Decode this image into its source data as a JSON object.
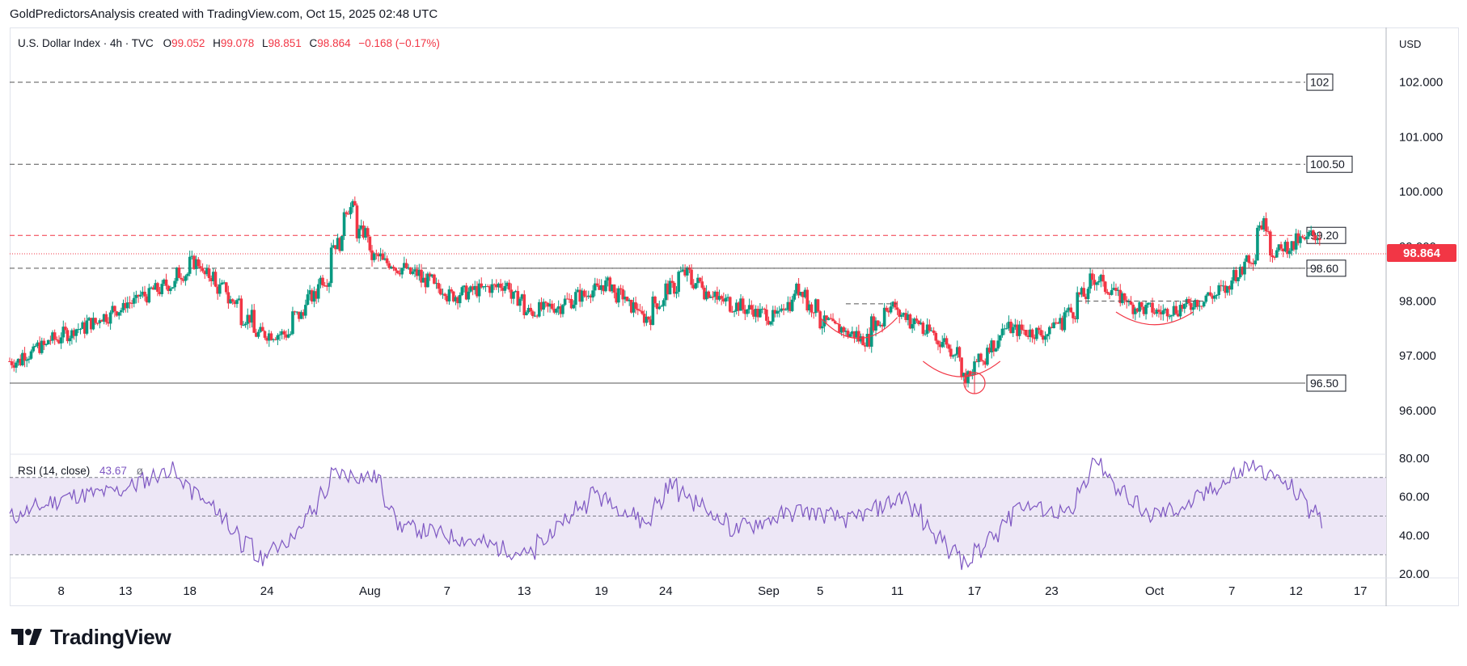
{
  "header": {
    "text": "GoldPredictorsAnalysis created with TradingView.com, Oct 15, 2025 02:48 UTC"
  },
  "legend": {
    "symbol": "U.S. Dollar Index · 4h · TVC",
    "open_label": "O",
    "open": "99.052",
    "high_label": "H",
    "high": "99.078",
    "low_label": "L",
    "low": "98.851",
    "close_label": "C",
    "close": "98.864",
    "change": "−0.168 (−0.17%)"
  },
  "currency": "USD",
  "last_price": "98.864",
  "rsi_legend": {
    "name": "RSI (14, close)",
    "value": "43.67",
    "extra": "ø"
  },
  "brand": {
    "name": "TradingView"
  },
  "colors": {
    "up": "#089981",
    "down": "#f23645",
    "rsi_line": "#7e57c2",
    "rsi_band": "#ede7f6",
    "level_line": "#555555",
    "red_level": "#f23645",
    "last_price_bg": "#f23645",
    "pattern": "#f23645"
  },
  "chart_data": [
    {
      "type": "candlestick",
      "title": "U.S. Dollar Index · 4h · TVC",
      "ylim": [
        95.2,
        103.0
      ],
      "y_ticks": [
        "102.000",
        "101.000",
        "100.000",
        "99.000",
        "98.000",
        "97.000",
        "96.000"
      ],
      "x_ticks": [
        "8",
        "13",
        "18",
        "24",
        "Aug",
        "7",
        "13",
        "19",
        "24",
        "Sep",
        "5",
        "11",
        "17",
        "23",
        "Oct",
        "7",
        "12",
        "17"
      ],
      "x_start": "2025-07-04",
      "x_end": "2025-10-19",
      "levels": [
        {
          "label": "102",
          "value": 102.0,
          "style": "dashed"
        },
        {
          "label": "100.50",
          "value": 100.5,
          "style": "dashed"
        },
        {
          "label": "99.20",
          "value": 99.2,
          "style": "dashed-red"
        },
        {
          "label": "98.60",
          "value": 98.6,
          "style": "dashed"
        },
        {
          "label": "96.50",
          "value": 96.5,
          "style": "solid"
        }
      ],
      "last_price": 98.864,
      "close_series": {
        "dates": [
          "2025-07-04",
          "2025-07-07",
          "2025-07-10",
          "2025-07-14",
          "2025-07-16",
          "2025-07-18",
          "2025-07-21",
          "2025-07-23",
          "2025-07-25",
          "2025-07-28",
          "2025-07-30",
          "2025-08-01",
          "2025-08-04",
          "2025-08-07",
          "2025-08-11",
          "2025-08-13",
          "2025-08-15",
          "2025-08-19",
          "2025-08-22",
          "2025-08-25",
          "2025-08-28",
          "2025-09-01",
          "2025-09-03",
          "2025-09-05",
          "2025-09-08",
          "2025-09-10",
          "2025-09-12",
          "2025-09-15",
          "2025-09-16",
          "2025-09-17",
          "2025-09-19",
          "2025-09-22",
          "2025-09-24",
          "2025-09-26",
          "2025-09-29",
          "2025-10-01",
          "2025-10-03",
          "2025-10-06",
          "2025-10-08",
          "2025-10-09",
          "2025-10-10",
          "2025-10-13",
          "2025-10-14"
        ],
        "values": [
          96.9,
          97.3,
          97.6,
          98.1,
          98.3,
          98.7,
          98.0,
          97.4,
          97.4,
          98.4,
          99.7,
          98.8,
          98.5,
          98.1,
          98.3,
          97.8,
          97.9,
          98.3,
          97.7,
          98.5,
          98.0,
          97.7,
          98.2,
          97.6,
          97.3,
          97.9,
          97.6,
          97.1,
          96.6,
          96.9,
          97.5,
          97.4,
          97.8,
          98.4,
          97.9,
          97.8,
          97.9,
          98.2,
          98.8,
          99.4,
          98.9,
          99.2,
          98.864
        ]
      }
    },
    {
      "type": "line",
      "name": "RSI (14, close)",
      "ylim": [
        18,
        82
      ],
      "y_ticks": [
        "80.00",
        "60.00",
        "40.00",
        "20.00"
      ],
      "bands": [
        70,
        50,
        30
      ],
      "x": [
        "2025-07-04",
        "2025-07-08",
        "2025-07-12",
        "2025-07-16",
        "2025-07-20",
        "2025-07-23",
        "2025-07-26",
        "2025-07-29",
        "2025-08-01",
        "2025-08-03",
        "2025-08-08",
        "2025-08-13",
        "2025-08-18",
        "2025-08-22",
        "2025-08-24",
        "2025-08-29",
        "2025-09-03",
        "2025-09-07",
        "2025-09-11",
        "2025-09-14",
        "2025-09-16",
        "2025-09-20",
        "2025-09-24",
        "2025-09-26",
        "2025-09-30",
        "2025-10-03",
        "2025-10-08",
        "2025-10-10",
        "2025-10-12",
        "2025-10-14"
      ],
      "values": [
        50,
        60,
        63,
        74,
        50,
        28,
        42,
        72,
        70,
        45,
        38,
        30,
        62,
        47,
        66,
        43,
        53,
        48,
        60,
        38,
        25,
        56,
        51,
        77,
        50,
        55,
        76,
        70,
        60,
        43.67
      ]
    }
  ]
}
